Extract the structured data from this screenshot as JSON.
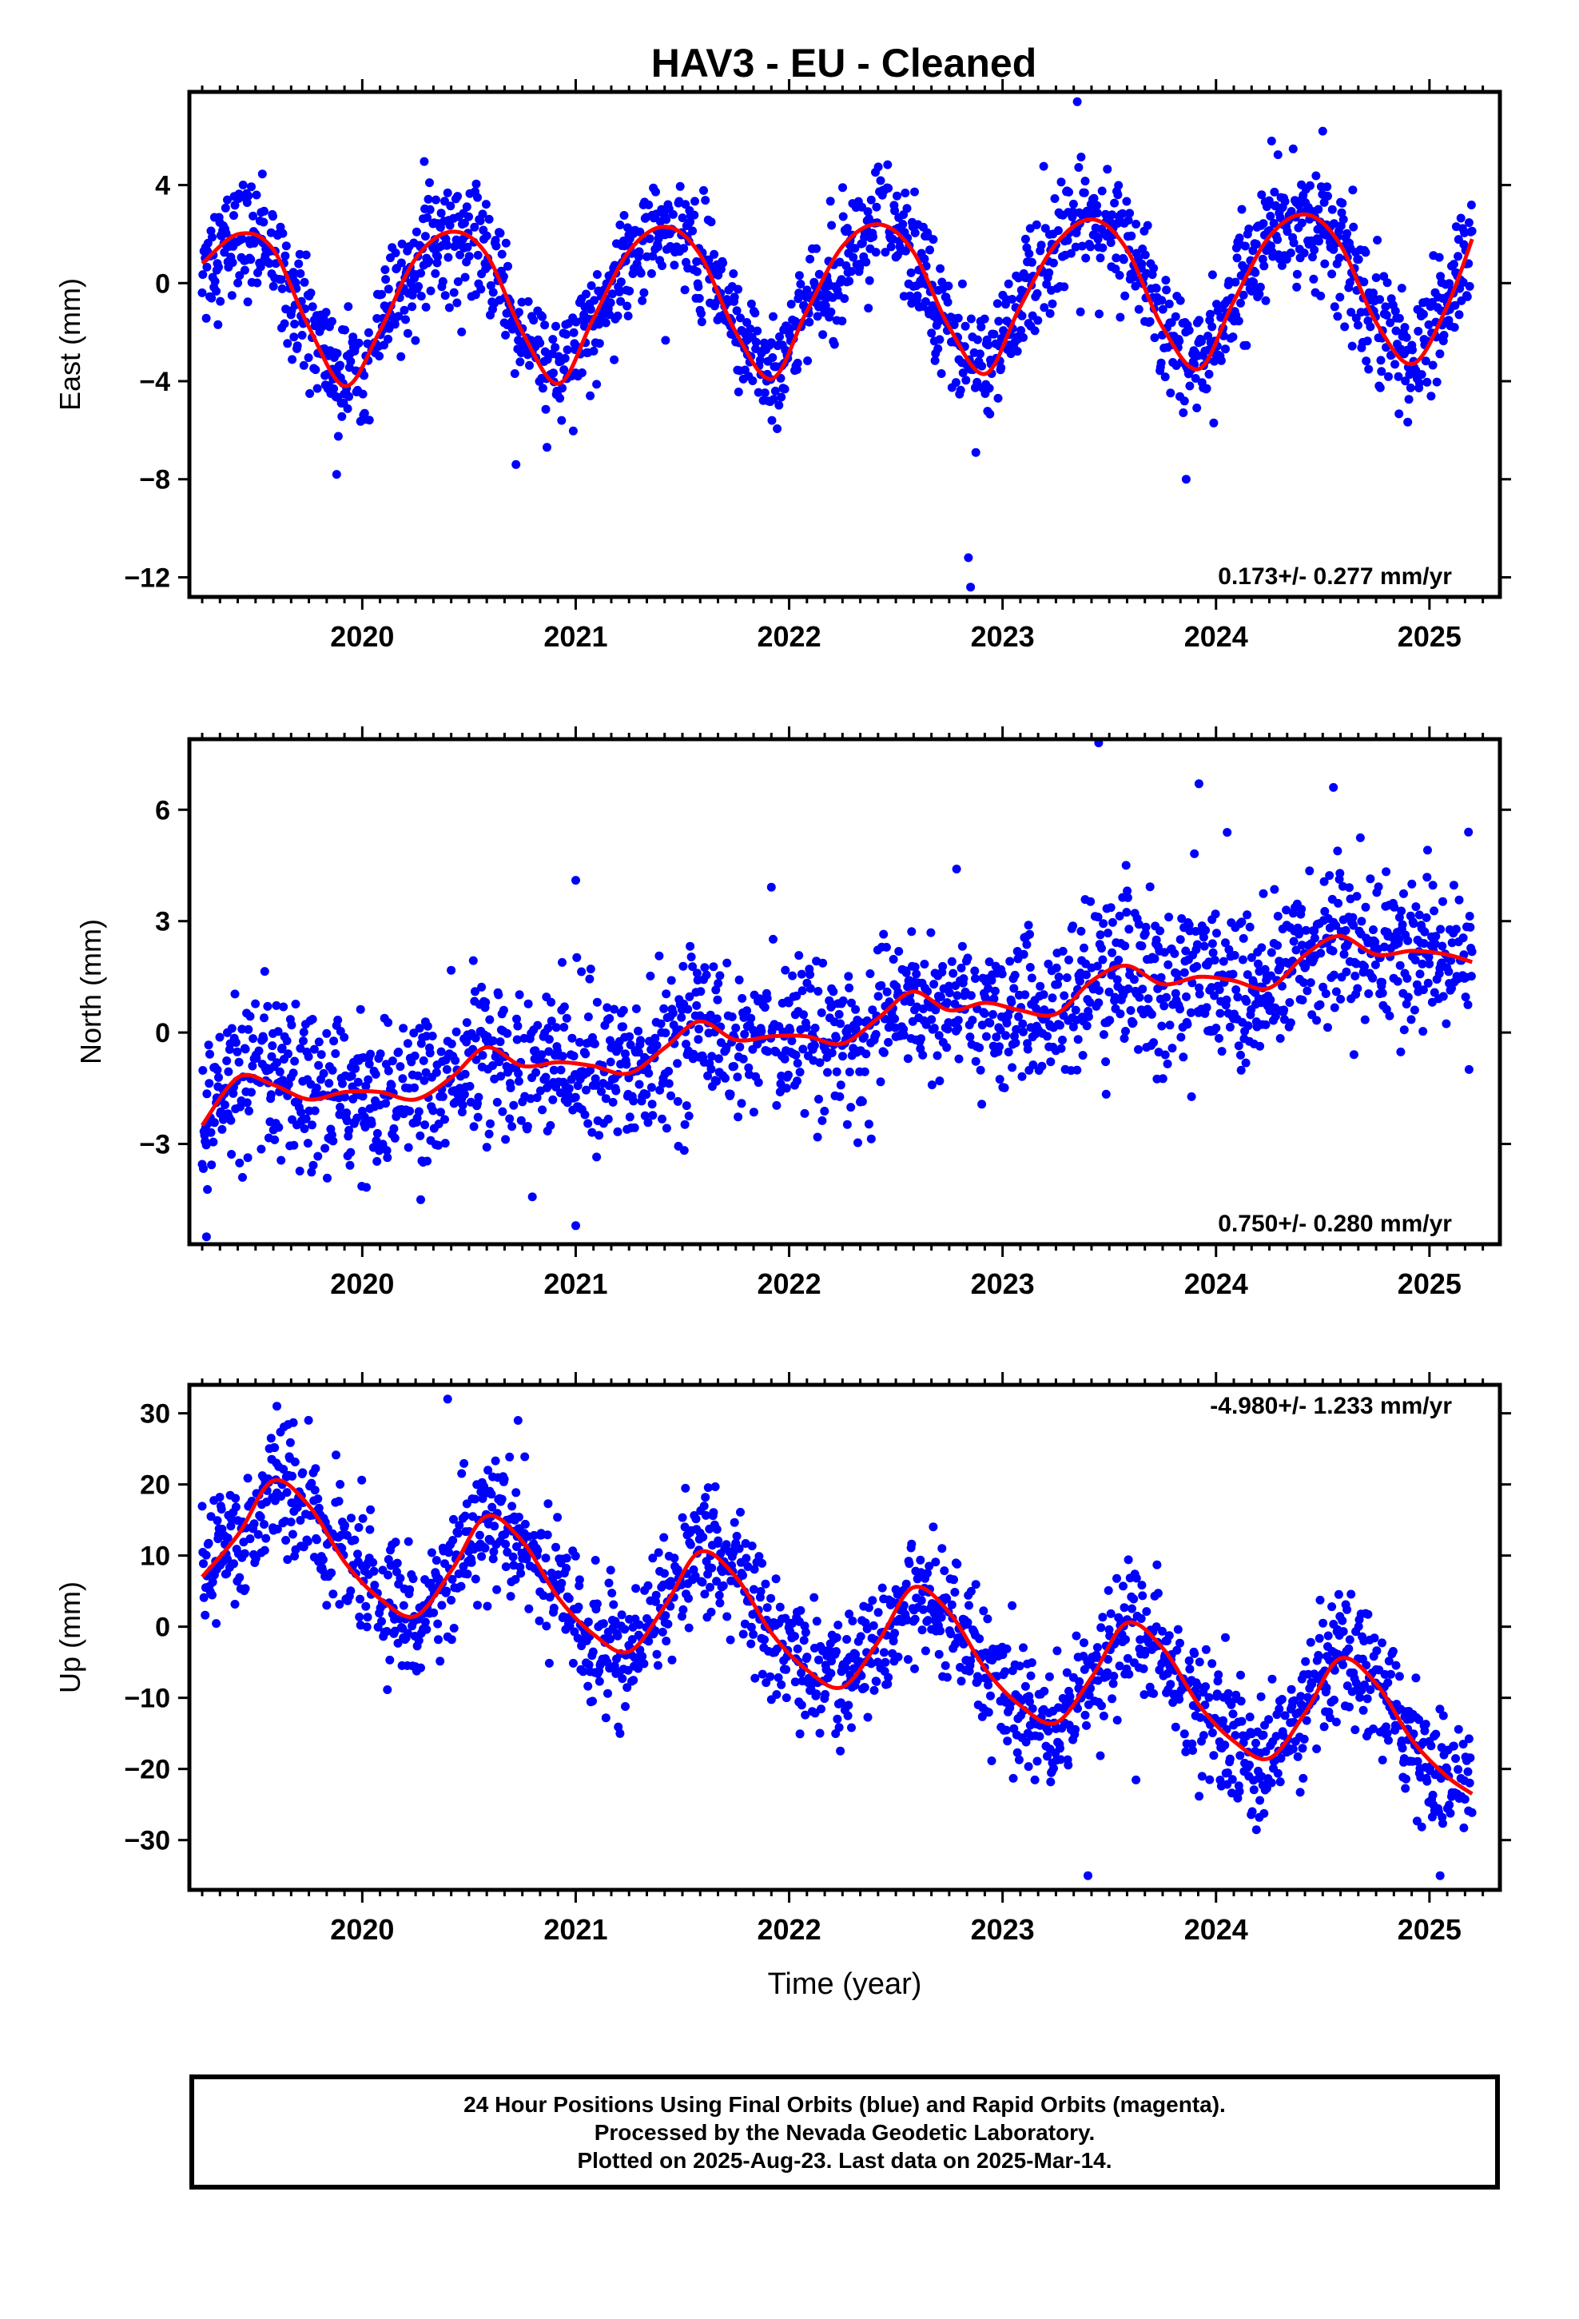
{
  "title": "HAV3  - EU - Cleaned",
  "colors": {
    "data": "#0000ff",
    "model": "#ff0000",
    "frame": "#000000"
  },
  "footer": {
    "line1": "24 Hour Positions Using Final Orbits (blue) and Rapid Orbits (magenta).",
    "line2": "Processed by the Nevada Geodetic Laboratory.",
    "line3": "Plotted on 2025-Aug-23. Last data on 2025-Mar-14."
  },
  "chart_data": [
    {
      "type": "scatter",
      "component": "east",
      "ylabel": "East (mm)",
      "xlim": [
        2019.19,
        2025.33
      ],
      "ylim": [
        -12.8,
        7.8
      ],
      "yticks": [
        4,
        0,
        -4,
        -8,
        -12
      ],
      "ytick_labels": [
        "4",
        "0",
        "−4",
        "−8",
        "−12"
      ],
      "xticks": [
        2020,
        2021,
        2022,
        2023,
        2024,
        2025
      ],
      "rate_label": "0.173+/- 0.277 mm/yr",
      "rate_position": "bottom-right",
      "model": {
        "name": "red",
        "points": [
          [
            2019.25,
            0.8
          ],
          [
            2019.42,
            2.0
          ],
          [
            2019.58,
            1.4
          ],
          [
            2019.75,
            -1.8
          ],
          [
            2019.92,
            -4.2
          ],
          [
            2020.08,
            -2.0
          ],
          [
            2020.25,
            1.0
          ],
          [
            2020.42,
            2.1
          ],
          [
            2020.58,
            1.2
          ],
          [
            2020.75,
            -2.0
          ],
          [
            2020.92,
            -4.1
          ],
          [
            2021.08,
            -1.5
          ],
          [
            2021.25,
            1.3
          ],
          [
            2021.42,
            2.3
          ],
          [
            2021.58,
            1.2
          ],
          [
            2021.75,
            -2.0
          ],
          [
            2021.92,
            -3.9
          ],
          [
            2022.08,
            -1.2
          ],
          [
            2022.25,
            1.5
          ],
          [
            2022.42,
            2.4
          ],
          [
            2022.58,
            1.3
          ],
          [
            2022.75,
            -1.8
          ],
          [
            2022.92,
            -3.7
          ],
          [
            2023.08,
            -1.0
          ],
          [
            2023.25,
            1.6
          ],
          [
            2023.42,
            2.6
          ],
          [
            2023.58,
            1.4
          ],
          [
            2023.75,
            -1.8
          ],
          [
            2023.92,
            -3.5
          ],
          [
            2024.08,
            -0.8
          ],
          [
            2024.25,
            1.9
          ],
          [
            2024.42,
            2.8
          ],
          [
            2024.58,
            1.6
          ],
          [
            2024.75,
            -1.6
          ],
          [
            2024.92,
            -3.3
          ],
          [
            2025.08,
            -1.0
          ],
          [
            2025.2,
            1.8
          ]
        ]
      },
      "noise": {
        "sd": 1.15,
        "extremes": [
          [
            2022.85,
            -12.4
          ],
          [
            2022.84,
            -11.2
          ],
          [
            2023.35,
            7.4
          ],
          [
            2023.86,
            -8.0
          ],
          [
            2019.88,
            -7.8
          ],
          [
            2020.72,
            -7.4
          ],
          [
            2024.5,
            6.2
          ]
        ]
      }
    },
    {
      "type": "scatter",
      "component": "north",
      "ylabel": "North (mm)",
      "xlim": [
        2019.19,
        2025.33
      ],
      "ylim": [
        -5.7,
        7.9
      ],
      "yticks": [
        6,
        3,
        0,
        -3
      ],
      "ytick_labels": [
        "6",
        "3",
        "0",
        "−3"
      ],
      "xticks": [
        2020,
        2021,
        2022,
        2023,
        2024,
        2025
      ],
      "rate_label": "0.750+/- 0.280 mm/yr",
      "rate_position": "bottom-right",
      "model": {
        "name": "red",
        "points": [
          [
            2019.25,
            -2.5
          ],
          [
            2019.42,
            -1.2
          ],
          [
            2019.58,
            -1.4
          ],
          [
            2019.75,
            -1.8
          ],
          [
            2019.92,
            -1.6
          ],
          [
            2020.08,
            -1.6
          ],
          [
            2020.25,
            -1.8
          ],
          [
            2020.42,
            -1.2
          ],
          [
            2020.58,
            -0.4
          ],
          [
            2020.75,
            -0.9
          ],
          [
            2020.92,
            -0.8
          ],
          [
            2021.08,
            -0.9
          ],
          [
            2021.25,
            -1.1
          ],
          [
            2021.42,
            -0.4
          ],
          [
            2021.58,
            0.3
          ],
          [
            2021.75,
            -0.2
          ],
          [
            2021.92,
            -0.1
          ],
          [
            2022.08,
            -0.1
          ],
          [
            2022.25,
            -0.3
          ],
          [
            2022.42,
            0.4
          ],
          [
            2022.58,
            1.1
          ],
          [
            2022.75,
            0.6
          ],
          [
            2022.92,
            0.8
          ],
          [
            2023.08,
            0.6
          ],
          [
            2023.25,
            0.5
          ],
          [
            2023.42,
            1.4
          ],
          [
            2023.58,
            1.8
          ],
          [
            2023.75,
            1.3
          ],
          [
            2023.92,
            1.5
          ],
          [
            2024.08,
            1.4
          ],
          [
            2024.25,
            1.2
          ],
          [
            2024.42,
            2.1
          ],
          [
            2024.58,
            2.6
          ],
          [
            2024.75,
            2.1
          ],
          [
            2024.92,
            2.2
          ],
          [
            2025.08,
            2.1
          ],
          [
            2025.2,
            1.9
          ]
        ]
      },
      "noise": {
        "sd": 1.05,
        "extremes": [
          [
            2019.27,
            -5.5
          ],
          [
            2021.0,
            4.1
          ],
          [
            2023.45,
            7.8
          ],
          [
            2024.55,
            6.6
          ],
          [
            2023.92,
            6.7
          ],
          [
            2021.0,
            -5.2
          ]
        ]
      }
    },
    {
      "type": "scatter",
      "component": "up",
      "ylabel": "Up (mm)",
      "xlabel": "Time (year)",
      "xlim": [
        2019.19,
        2025.33
      ],
      "ylim": [
        -37,
        34
      ],
      "yticks": [
        30,
        20,
        10,
        0,
        -10,
        -20,
        -30
      ],
      "ytick_labels": [
        "30",
        "20",
        "10",
        "0",
        "−10",
        "−20",
        "−30"
      ],
      "xticks": [
        2020,
        2021,
        2022,
        2023,
        2024,
        2025
      ],
      "rate_label": "-4.980+/- 1.233 mm/yr",
      "rate_position": "top-right",
      "model": {
        "name": "red",
        "points": [
          [
            2019.25,
            7
          ],
          [
            2019.42,
            13
          ],
          [
            2019.58,
            20.5
          ],
          [
            2019.75,
            17
          ],
          [
            2019.92,
            9
          ],
          [
            2020.08,
            4
          ],
          [
            2020.25,
            1.5
          ],
          [
            2020.42,
            8
          ],
          [
            2020.58,
            15.5
          ],
          [
            2020.75,
            12
          ],
          [
            2020.92,
            4
          ],
          [
            2021.08,
            -1
          ],
          [
            2021.25,
            -3.5
          ],
          [
            2021.42,
            3
          ],
          [
            2021.58,
            10.5
          ],
          [
            2021.75,
            7
          ],
          [
            2021.92,
            -1
          ],
          [
            2022.08,
            -6
          ],
          [
            2022.25,
            -8.5
          ],
          [
            2022.42,
            -2
          ],
          [
            2022.58,
            5.5
          ],
          [
            2022.75,
            2
          ],
          [
            2022.92,
            -6
          ],
          [
            2023.08,
            -11
          ],
          [
            2023.25,
            -13.5
          ],
          [
            2023.42,
            -7
          ],
          [
            2023.58,
            0.5
          ],
          [
            2023.75,
            -3
          ],
          [
            2023.92,
            -11
          ],
          [
            2024.08,
            -16
          ],
          [
            2024.25,
            -18.5
          ],
          [
            2024.42,
            -12
          ],
          [
            2024.58,
            -4.5
          ],
          [
            2024.75,
            -8
          ],
          [
            2024.92,
            -16
          ],
          [
            2025.08,
            -21
          ],
          [
            2025.2,
            -23.5
          ]
        ]
      },
      "noise": {
        "sd": 4.4,
        "extremes": [
          [
            2020.4,
            32
          ],
          [
            2019.6,
            31
          ],
          [
            2023.4,
            -35
          ],
          [
            2025.05,
            -35
          ],
          [
            2020.73,
            29
          ]
        ]
      }
    }
  ]
}
